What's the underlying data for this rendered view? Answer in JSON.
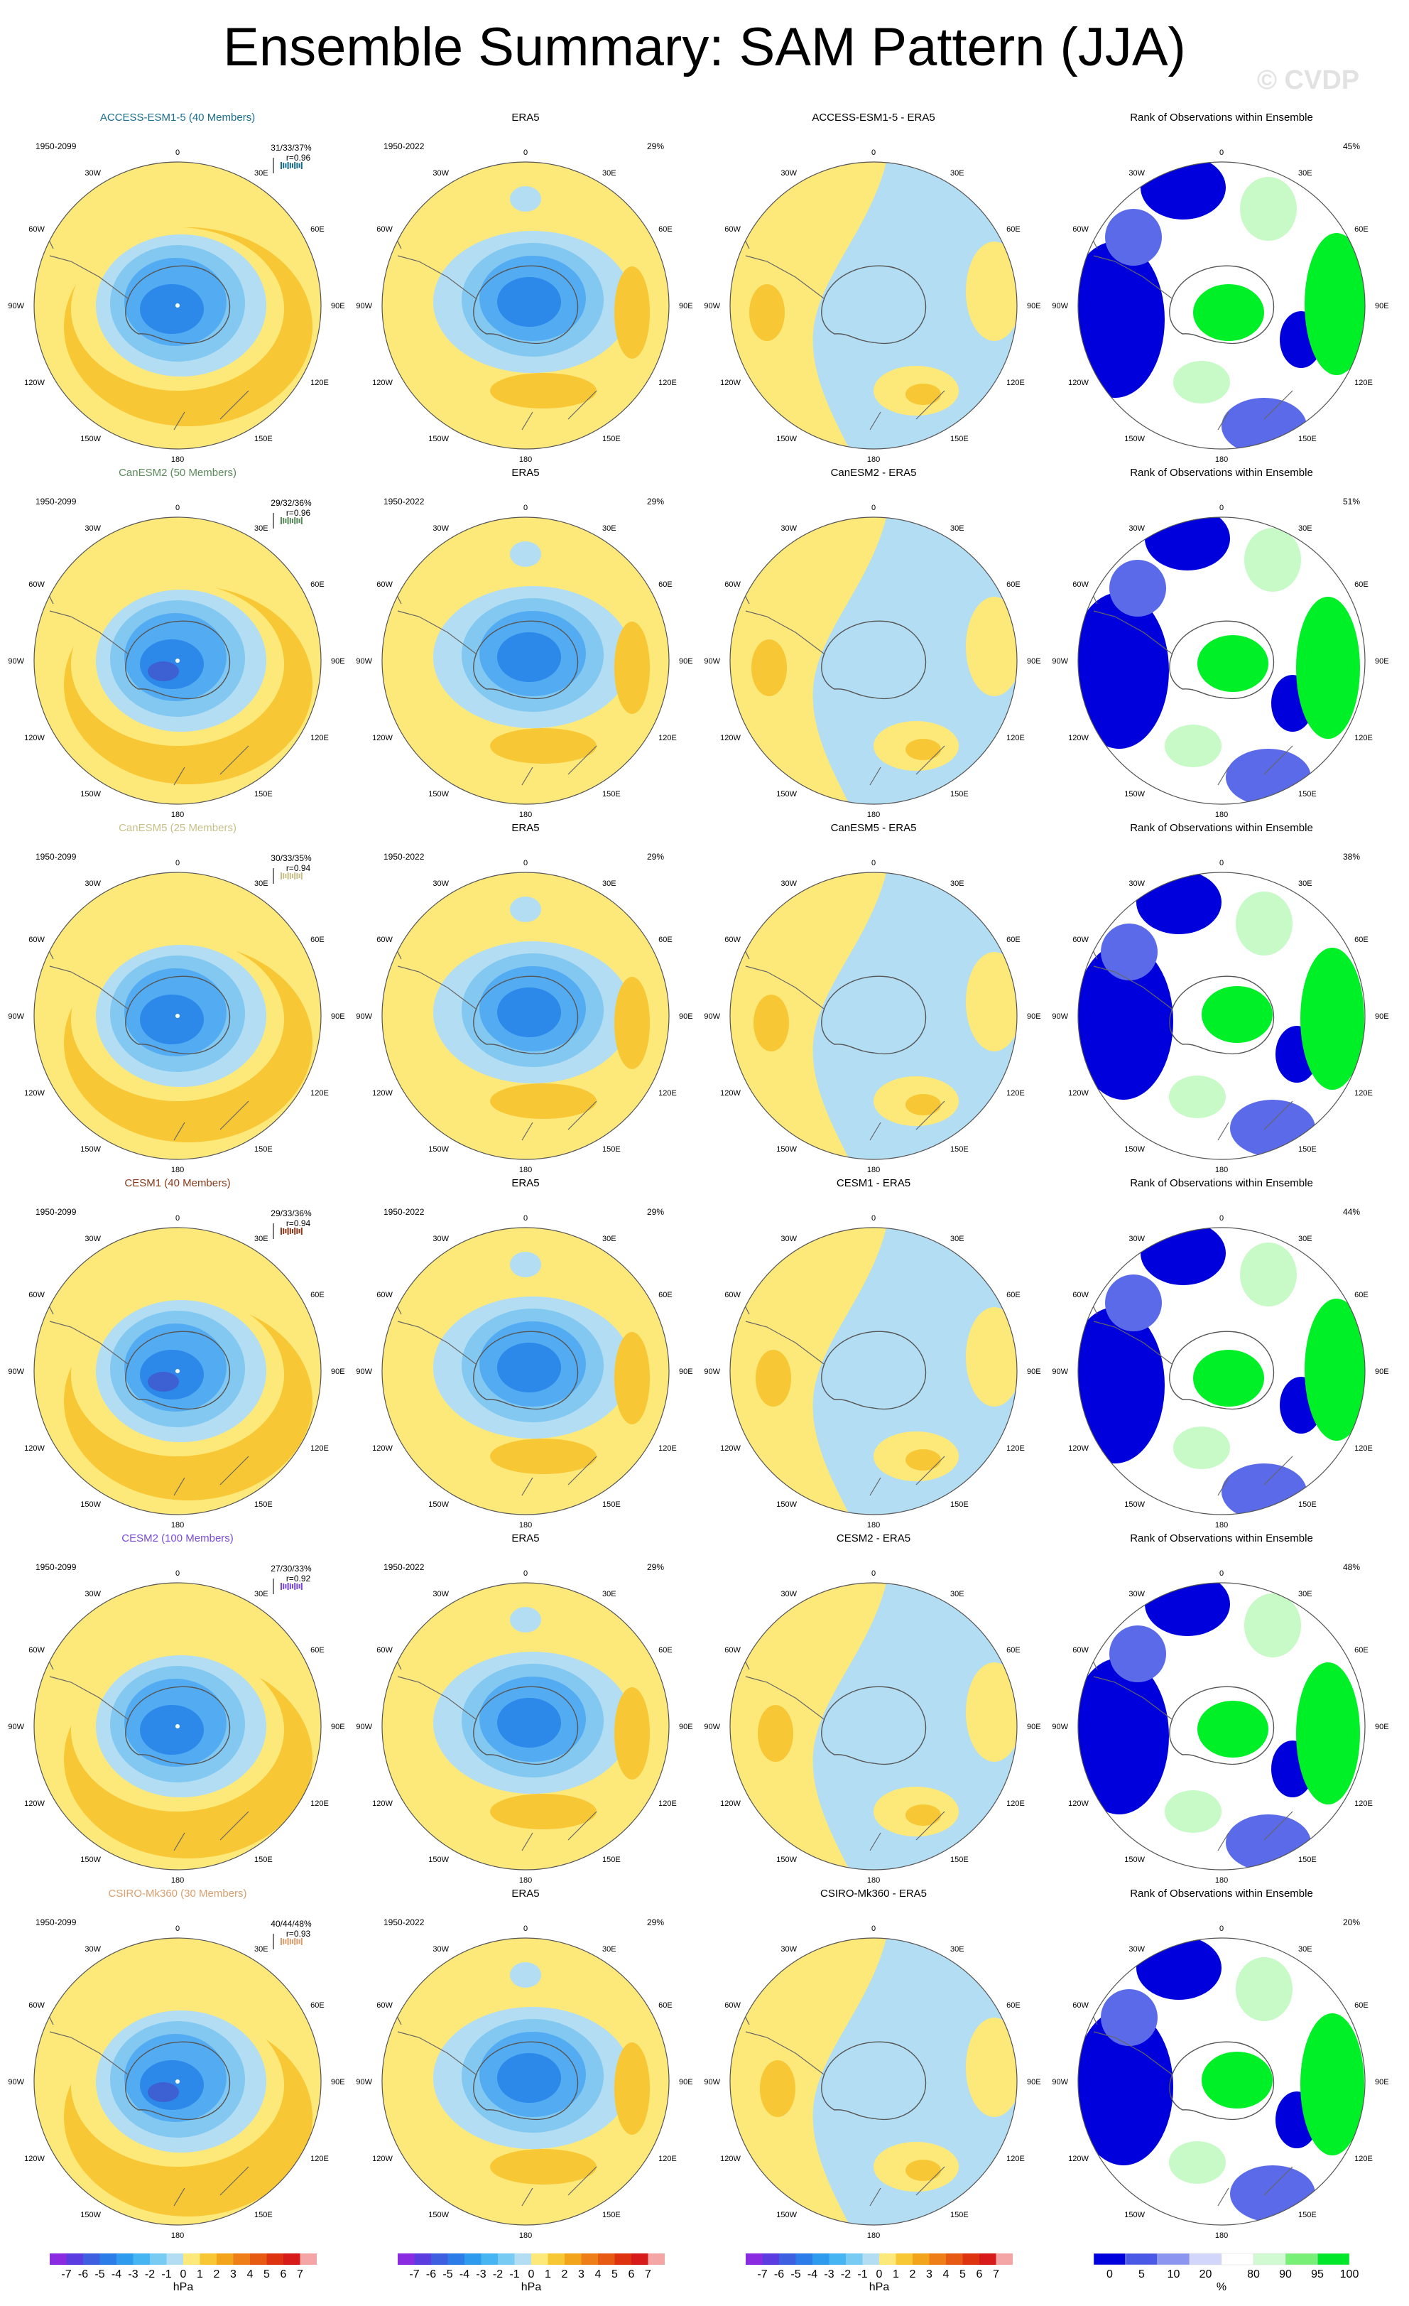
{
  "title": "Ensemble Summary: SAM Pattern (JJA)",
  "watermark": "© CVDP",
  "colors": {
    "positive": "#fde97a",
    "positive2": "#f8c735",
    "positive3": "#f2a41d",
    "positive4": "#e9731a",
    "negative": "#b2ddf3",
    "negative2": "#82c8f0",
    "negative3": "#53acf2",
    "negative4": "#2d89e9",
    "negative5": "#3d60d3",
    "rank_high": "#0000dc",
    "rank_mid": "#5a6ae8",
    "rank_low_green": "#00f028",
    "rank_pale_green": "#c8fac8"
  },
  "longitude_labels": [
    "0",
    "30E",
    "60E",
    "90E",
    "120E",
    "150E",
    "180",
    "150W",
    "120W",
    "90W",
    "60W",
    "30W"
  ],
  "model_rows": [
    {
      "model_title": "ACCESS-ESM1-5 (40 Members)",
      "color": "#1a6e8c",
      "model_period": "1950-2099",
      "stats": "31/33/37%",
      "corr": "r=0.96",
      "obs_title": "ERA5",
      "obs_period": "1950-2022",
      "obs_pct": "29%",
      "diff_title": "ACCESS-ESM1-5 - ERA5",
      "rank_title": "Rank of Observations within Ensemble",
      "rank_pct": "45%"
    },
    {
      "model_title": "CanESM2 (50 Members)",
      "color": "#5a8a5a",
      "model_period": "1950-2099",
      "stats": "29/32/36%",
      "corr": "r=0.96",
      "obs_title": "ERA5",
      "obs_period": "1950-2022",
      "obs_pct": "29%",
      "diff_title": "CanESM2 - ERA5",
      "rank_title": "Rank of Observations within Ensemble",
      "rank_pct": "51%"
    },
    {
      "model_title": "CanESM5 (25 Members)",
      "color": "#c8c08a",
      "model_period": "1950-2099",
      "stats": "30/33/35%",
      "corr": "r=0.94",
      "obs_title": "ERA5",
      "obs_period": "1950-2022",
      "obs_pct": "29%",
      "diff_title": "CanESM5 - ERA5",
      "rank_title": "Rank of Observations within Ensemble",
      "rank_pct": "38%"
    },
    {
      "model_title": "CESM1 (40 Members)",
      "color": "#8a3a1a",
      "model_period": "1950-2099",
      "stats": "29/33/36%",
      "corr": "r=0.94",
      "obs_title": "ERA5",
      "obs_period": "1950-2022",
      "obs_pct": "29%",
      "diff_title": "CESM1 - ERA5",
      "rank_title": "Rank of Observations within Ensemble",
      "rank_pct": "44%"
    },
    {
      "model_title": "CESM2 (100 Members)",
      "color": "#7a4ad8",
      "model_period": "1950-2099",
      "stats": "27/30/33%",
      "corr": "r=0.92",
      "obs_title": "ERA5",
      "obs_period": "1950-2022",
      "obs_pct": "29%",
      "diff_title": "CESM2 - ERA5",
      "rank_title": "Rank of Observations within Ensemble",
      "rank_pct": "48%"
    },
    {
      "model_title": "CSIRO-Mk360 (30 Members)",
      "color": "#d8a070",
      "model_period": "1950-2099",
      "stats": "40/44/48%",
      "corr": "r=0.93",
      "obs_title": "ERA5",
      "obs_period": "1950-2022",
      "obs_pct": "29%",
      "diff_title": "CSIRO-Mk360 - ERA5",
      "rank_title": "Rank of Observations within Ensemble",
      "rank_pct": "20%"
    }
  ],
  "colorbar_hpa": {
    "labels": [
      "-7",
      "-6",
      "-5",
      "-4",
      "-3",
      "-2",
      "-1",
      "0",
      "1",
      "2",
      "3",
      "4",
      "5",
      "6",
      "7"
    ],
    "units": "hPa",
    "colors": [
      "#8a2be2",
      "#5a3ce0",
      "#3d5fe0",
      "#2d7de8",
      "#2f9bef",
      "#46b5f2",
      "#78cbf2",
      "#b2ddf3",
      "#fde97a",
      "#f8c735",
      "#f2a41d",
      "#ee7e17",
      "#e65a14",
      "#dd3311",
      "#d71a1a",
      "#f4a5a5"
    ]
  },
  "colorbar_rank": {
    "labels": [
      "0",
      "5",
      "10",
      "20",
      "80",
      "90",
      "95",
      "100"
    ],
    "units": "%",
    "colors": [
      "#0000dc",
      "#4a5ae6",
      "#8c96f0",
      "#d2d6fa",
      "#ffffff",
      "#d2fad2",
      "#78f078",
      "#00e628"
    ]
  }
}
